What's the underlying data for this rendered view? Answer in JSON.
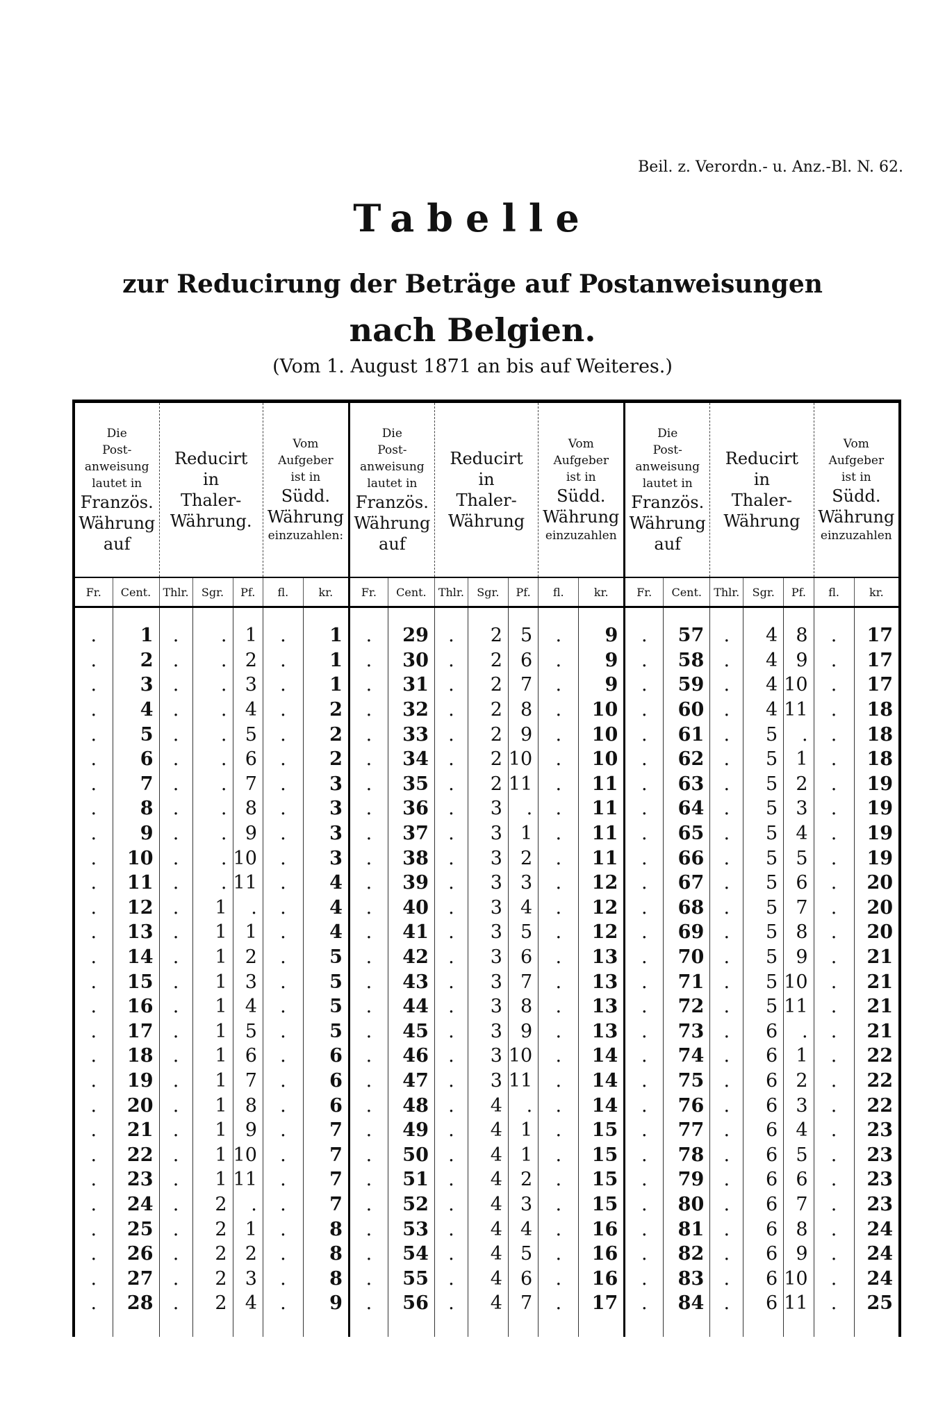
{
  "header_ref": "Beil. z. Verordn.- u. Anz.-Bl. N. 62.",
  "title": "Tabelle",
  "subtitle": "zur Reducirung der Beträge auf Postanweisungen",
  "destination": "nach Belgien.",
  "date_note": "(Vom 1. August 1871 an bis auf Weiteres.)",
  "blocks": [
    {
      "head": {
        "col1": [
          "Die",
          "Post-",
          "anweisung",
          "lautet in",
          "Französ.",
          "Währung",
          "auf"
        ],
        "col2": [
          "Reducirt",
          "in",
          "Thaler-",
          "Währung."
        ],
        "col3": [
          "Vom",
          "Aufgeber",
          "ist in",
          "Südd.",
          "Währung",
          "einzuzahlen:"
        ]
      },
      "units": [
        "Fr.",
        "Cent.",
        "Thlr.",
        "Sgr.",
        "Pf.",
        "fl.",
        "kr."
      ],
      "cent": [
        "1",
        "2",
        "3",
        "4",
        "5",
        "6",
        "7",
        "8",
        "9",
        "10",
        "11",
        "12",
        "13",
        "14",
        "15",
        "16",
        "17",
        "18",
        "19",
        "20",
        "21",
        "22",
        "23",
        "24",
        "25",
        "26",
        "27",
        "28"
      ],
      "sgr": [
        ".",
        ".",
        ".",
        ".",
        ".",
        ".",
        ".",
        ".",
        ".",
        ".",
        ".",
        "1",
        "1",
        "1",
        "1",
        "1",
        "1",
        "1",
        "1",
        "1",
        "1",
        "1",
        "1",
        "2",
        "2",
        "2",
        "2",
        "2"
      ],
      "pf": [
        "1",
        "2",
        "3",
        "4",
        "5",
        "6",
        "7",
        "8",
        "9",
        "10",
        "11",
        ".",
        "1",
        "2",
        "3",
        "4",
        "5",
        "6",
        "7",
        "8",
        "9",
        "10",
        "11",
        ".",
        "1",
        "2",
        "3",
        "4"
      ],
      "kr": [
        "1",
        "1",
        "1",
        "2",
        "2",
        "2",
        "3",
        "3",
        "3",
        "3",
        "4",
        "4",
        "4",
        "5",
        "5",
        "5",
        "5",
        "6",
        "6",
        "6",
        "7",
        "7",
        "7",
        "7",
        "8",
        "8",
        "8",
        "9"
      ]
    },
    {
      "head": {
        "col1": [
          "Die",
          "Post-",
          "anweisung",
          "lautet in",
          "Französ.",
          "Währung",
          "auf"
        ],
        "col2": [
          "Reducirt",
          "in",
          "Thaler-",
          "Währung"
        ],
        "col3": [
          "Vom",
          "Aufgeber",
          "ist in",
          "Südd.",
          "Währung",
          "einzuzahlen"
        ]
      },
      "units": [
        "Fr.",
        "Cent.",
        "Thlr.",
        "Sgr.",
        "Pf.",
        "fl.",
        "kr."
      ],
      "cent": [
        "29",
        "30",
        "31",
        "32",
        "33",
        "34",
        "35",
        "36",
        "37",
        "38",
        "39",
        "40",
        "41",
        "42",
        "43",
        "44",
        "45",
        "46",
        "47",
        "48",
        "49",
        "50",
        "51",
        "52",
        "53",
        "54",
        "55",
        "56"
      ],
      "sgr": [
        "2",
        "2",
        "2",
        "2",
        "2",
        "2",
        "2",
        "3",
        "3",
        "3",
        "3",
        "3",
        "3",
        "3",
        "3",
        "3",
        "3",
        "3",
        "3",
        "4",
        "4",
        "4",
        "4",
        "4",
        "4",
        "4",
        "4",
        "4"
      ],
      "pf": [
        "5",
        "6",
        "7",
        "8",
        "9",
        "10",
        "11",
        ".",
        "1",
        "2",
        "3",
        "4",
        "5",
        "6",
        "7",
        "8",
        "9",
        "10",
        "11",
        ".",
        "1",
        "1",
        "2",
        "3",
        "4",
        "5",
        "6",
        "7"
      ],
      "kr": [
        "9",
        "9",
        "9",
        "10",
        "10",
        "10",
        "11",
        "11",
        "11",
        "11",
        "12",
        "12",
        "12",
        "13",
        "13",
        "13",
        "13",
        "14",
        "14",
        "14",
        "15",
        "15",
        "15",
        "15",
        "16",
        "16",
        "16",
        "17"
      ]
    },
    {
      "head": {
        "col1": [
          "Die",
          "Post-",
          "anweisung",
          "lautet in",
          "Französ.",
          "Währung",
          "auf"
        ],
        "col2": [
          "Reducirt",
          "in",
          "Thaler-",
          "Währung"
        ],
        "col3": [
          "Vom",
          "Aufgeber",
          "ist in",
          "Südd.",
          "Währung",
          "einzuzahlen"
        ]
      },
      "units": [
        "Fr.",
        "Cent.",
        "Thlr.",
        "Sgr.",
        "Pf.",
        "fl.",
        "kr."
      ],
      "cent": [
        "57",
        "58",
        "59",
        "60",
        "61",
        "62",
        "63",
        "64",
        "65",
        "66",
        "67",
        "68",
        "69",
        "70",
        "71",
        "72",
        "73",
        "74",
        "75",
        "76",
        "77",
        "78",
        "79",
        "80",
        "81",
        "82",
        "83",
        "84"
      ],
      "sgr": [
        "4",
        "4",
        "4",
        "4",
        "5",
        "5",
        "5",
        "5",
        "5",
        "5",
        "5",
        "5",
        "5",
        "5",
        "5",
        "5",
        "6",
        "6",
        "6",
        "6",
        "6",
        "6",
        "6",
        "6",
        "6",
        "6",
        "6",
        "6"
      ],
      "pf": [
        "8",
        "9",
        "10",
        "11",
        ".",
        "1",
        "2",
        "3",
        "4",
        "5",
        "6",
        "7",
        "8",
        "9",
        "10",
        "11",
        ".",
        "1",
        "2",
        "3",
        "4",
        "5",
        "6",
        "7",
        "8",
        "9",
        "10",
        "11"
      ],
      "kr": [
        "17",
        "17",
        "17",
        "18",
        "18",
        "18",
        "19",
        "19",
        "19",
        "19",
        "20",
        "20",
        "20",
        "21",
        "21",
        "21",
        "21",
        "22",
        "22",
        "22",
        "23",
        "23",
        "23",
        "23",
        "24",
        "24",
        "24",
        "25"
      ]
    }
  ],
  "empty_mark": "."
}
